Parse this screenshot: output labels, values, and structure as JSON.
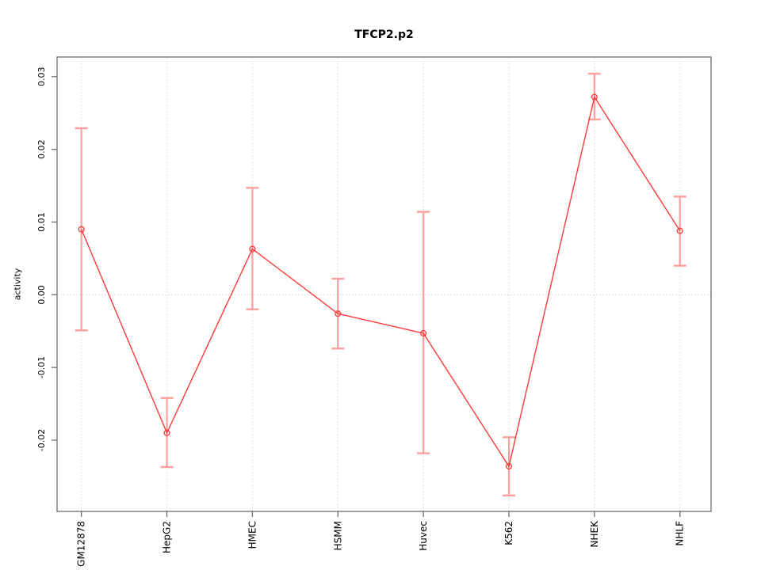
{
  "chart_data": {
    "type": "line",
    "title": "TFCP2.p2",
    "xlabel": "",
    "ylabel": "activity",
    "categories": [
      "GM12878",
      "HepG2",
      "HMEC",
      "HSMM",
      "Huvec",
      "K562",
      "NHEK",
      "NHLF"
    ],
    "series": [
      {
        "name": "activity",
        "values": [
          0.009,
          -0.019,
          0.0063,
          -0.0026,
          -0.0053,
          -0.0236,
          0.0272,
          0.0088
        ],
        "upper": [
          0.0229,
          -0.0142,
          0.0147,
          0.0022,
          0.0114,
          -0.0196,
          0.0304,
          0.0135
        ],
        "lower": [
          -0.0049,
          -0.0237,
          -0.002,
          -0.0074,
          -0.0218,
          -0.0276,
          0.0241,
          0.004
        ]
      }
    ],
    "ylim": [
      -0.0298,
      0.0327
    ],
    "yticks": [
      0.03,
      0.02,
      0.01,
      0,
      -0.01,
      -0.02
    ],
    "ytick_labels": [
      "0.03",
      "0.02",
      "0.01",
      "0.00",
      "-0.01",
      "-0.02"
    ],
    "legend": "none",
    "grid": {
      "horizontal_at": [
        0
      ],
      "vertical_at_categories": true,
      "style": "dotted"
    },
    "colors": {
      "line": "#ff3b3b",
      "point": "#ff3b3b",
      "errorbar": "#ff9e9e",
      "grid": "#d9d9d9",
      "axis": "#6e6e6e",
      "text": "#000000",
      "background": "#ffffff"
    }
  }
}
